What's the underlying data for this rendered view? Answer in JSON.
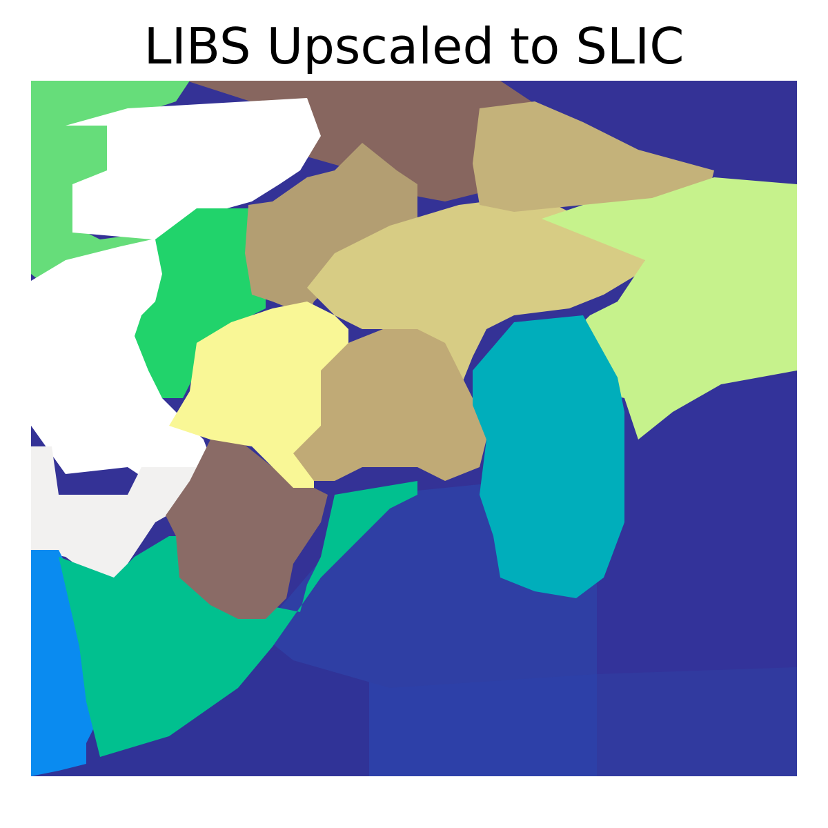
{
  "chart_data": {
    "type": "heatmap",
    "title": "LIBS Upscaled to SLIC",
    "xlabel": "",
    "ylabel": "",
    "axes_visible": false,
    "grid": false,
    "legend": "none",
    "description_of_encoding": "segment label map; each superpixel region filled with one colormap color",
    "segments": [
      {
        "id": "s1",
        "color": "#66dd7a"
      },
      {
        "id": "s2",
        "color": "#ffffff"
      },
      {
        "id": "s3",
        "color": "#87665f"
      },
      {
        "id": "s4",
        "color": "#343296"
      },
      {
        "id": "s5",
        "color": "#c4b27a"
      },
      {
        "id": "s6",
        "color": "#b39e72"
      },
      {
        "id": "s7",
        "color": "#21d36b"
      },
      {
        "id": "s8",
        "color": "#d7cc84"
      },
      {
        "id": "s9",
        "color": "#c6f28c"
      },
      {
        "id": "s10",
        "color": "#f9f796"
      },
      {
        "id": "s11",
        "color": "#c0aa76"
      },
      {
        "id": "s12",
        "color": "#00aebb"
      },
      {
        "id": "s13",
        "color": "#f2f1f0"
      },
      {
        "id": "s14",
        "color": "#8a6b66"
      },
      {
        "id": "s15",
        "color": "#01c08f"
      },
      {
        "id": "s16",
        "color": "#0a8bf0"
      },
      {
        "id": "s17",
        "color": "#2f3fa4"
      },
      {
        "id": "s18",
        "color": "#303397"
      },
      {
        "id": "s19",
        "color": "#2d40a8"
      },
      {
        "id": "s20",
        "color": "#313a9f"
      },
      {
        "id": "s21",
        "color": "#33339a"
      }
    ]
  }
}
